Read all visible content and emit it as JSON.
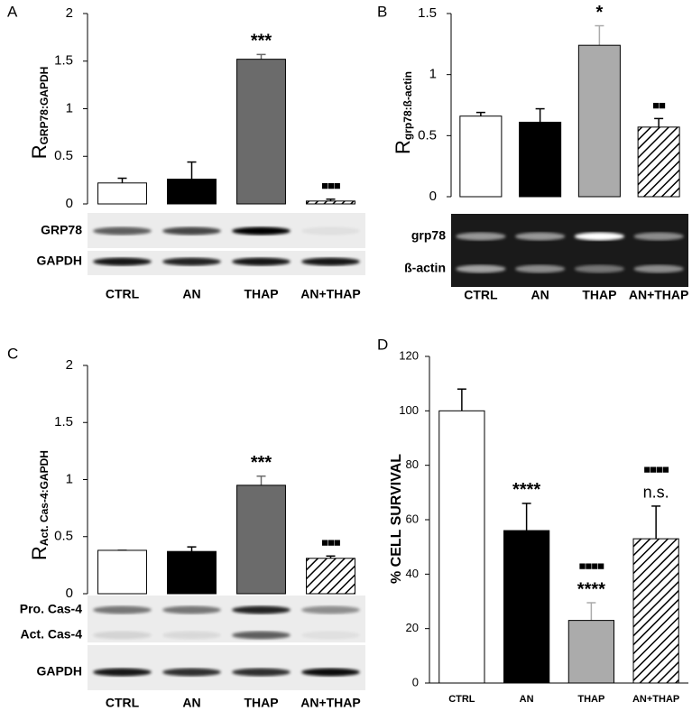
{
  "chart_data": [
    {
      "type": "bar",
      "panel": "A",
      "ylabel": "R",
      "ylabel_sub": "GRP78:GAPDH",
      "categories": [
        "CTRL",
        "AN",
        "THAP",
        "AN+THAP"
      ],
      "values": [
        0.22,
        0.26,
        1.52,
        0.03
      ],
      "errors": [
        0.05,
        0.18,
        0.05,
        0.02
      ],
      "colors": [
        "#ffffff",
        "#000000",
        "#6b6b6b",
        "#ffffff"
      ],
      "hatched": [
        false,
        false,
        false,
        true
      ],
      "annotations": [
        [],
        [],
        [
          "***"
        ],
        [
          "■■■"
        ]
      ],
      "ylim": [
        0,
        2
      ],
      "yticks": [
        0,
        0.5,
        1,
        1.5,
        2
      ],
      "blot_labels": [
        "GRP78",
        "GAPDH"
      ]
    },
    {
      "type": "bar",
      "panel": "B",
      "ylabel": "R",
      "ylabel_sub": "grp78:ß-actin",
      "categories": [
        "CTRL",
        "AN",
        "THAP",
        "AN+THAP"
      ],
      "values": [
        0.66,
        0.61,
        1.24,
        0.57
      ],
      "errors": [
        0.03,
        0.11,
        0.16,
        0.07
      ],
      "colors": [
        "#ffffff",
        "#000000",
        "#ababab",
        "#ffffff"
      ],
      "hatched": [
        false,
        false,
        false,
        true
      ],
      "annotations": [
        [],
        [],
        [
          "*"
        ],
        [
          "■■"
        ]
      ],
      "ylim": [
        0,
        1.5
      ],
      "yticks": [
        0,
        0.5,
        1,
        1.5
      ],
      "blot_labels": [
        "grp78",
        "ß-actin"
      ]
    },
    {
      "type": "bar",
      "panel": "C",
      "ylabel": "R",
      "ylabel_sub": "Act. Cas-4:GAPDH",
      "categories": [
        "CTRL",
        "AN",
        "THAP",
        "AN+THAP"
      ],
      "values": [
        0.38,
        0.37,
        0.95,
        0.31
      ],
      "errors": [
        0,
        0.04,
        0.08,
        0.02
      ],
      "colors": [
        "#ffffff",
        "#000000",
        "#6b6b6b",
        "#ffffff"
      ],
      "hatched": [
        false,
        false,
        false,
        true
      ],
      "annotations": [
        [],
        [],
        [
          "***"
        ],
        [
          "■■■"
        ]
      ],
      "ylim": [
        0,
        2
      ],
      "yticks": [
        0,
        0.5,
        1,
        1.5,
        2
      ],
      "blot_labels": [
        "Pro. Cas-4",
        "Act. Cas-4",
        "GAPDH"
      ]
    },
    {
      "type": "bar",
      "panel": "D",
      "ylabel": "% CELL SURVIVAL",
      "categories": [
        "CTRL",
        "AN",
        "THAP",
        "AN+THAP"
      ],
      "values": [
        100,
        56,
        23,
        53
      ],
      "errors": [
        8,
        10,
        6.5,
        12
      ],
      "colors": [
        "#ffffff",
        "#000000",
        "#ababab",
        "#ffffff"
      ],
      "hatched": [
        false,
        false,
        false,
        true
      ],
      "annotations": [
        [],
        [
          "****"
        ],
        [
          "■■■■",
          "****"
        ],
        [
          "■■■■",
          "n.s."
        ]
      ],
      "ylim": [
        0,
        120
      ],
      "yticks": [
        0,
        20,
        40,
        60,
        80,
        100,
        120
      ]
    }
  ]
}
